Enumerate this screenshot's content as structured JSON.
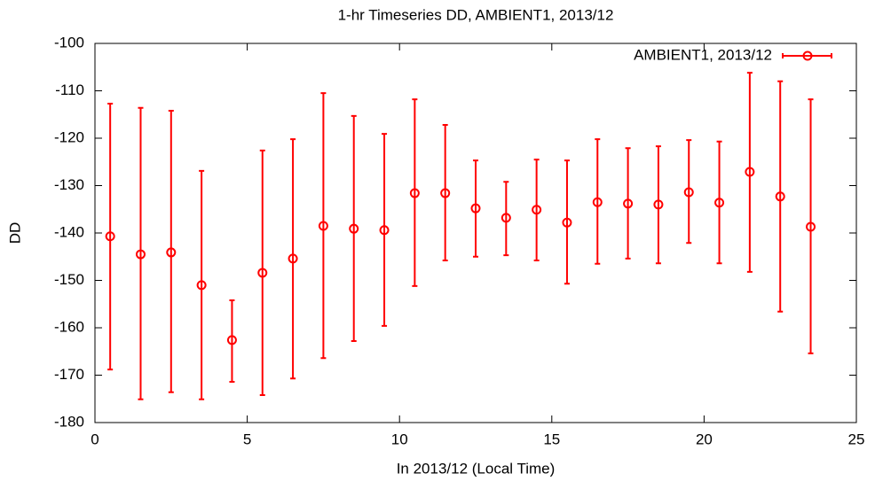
{
  "chart_data": {
    "type": "errorbar",
    "title": "1-hr Timeseries DD, AMBIENT1, 2013/12",
    "xlabel": "In 2013/12 (Local Time)",
    "ylabel": "DD",
    "xlim": [
      0,
      25
    ],
    "xticks": [
      0,
      5,
      10,
      15,
      20,
      25
    ],
    "ylim": [
      -180,
      -100
    ],
    "yticks": [
      -180,
      -170,
      -160,
      -150,
      -140,
      -130,
      -120,
      -110,
      -100
    ],
    "grid": false,
    "legend": "upper-right",
    "x": [
      0.5,
      1.5,
      2.5,
      3.5,
      4.5,
      5.5,
      6.5,
      7.5,
      8.5,
      9.5,
      10.5,
      11.5,
      12.5,
      13.5,
      14.5,
      15.5,
      16.5,
      17.5,
      18.5,
      19.5,
      20.5,
      21.5,
      22.5,
      23.5
    ],
    "series": [
      {
        "name": "AMBIENT1, 2013/12",
        "color": "#ff0000",
        "values": [
          -140.7,
          -144.5,
          -144.1,
          -151.0,
          -162.6,
          -148.4,
          -145.4,
          -138.5,
          -139.1,
          -139.4,
          -131.6,
          -131.6,
          -134.8,
          -136.8,
          -135.1,
          -137.8,
          -133.5,
          -133.8,
          -134.0,
          -131.4,
          -133.6,
          -127.1,
          -132.3,
          -138.7
        ],
        "low": [
          -168.8,
          -175.1,
          -173.6,
          -175.1,
          -171.4,
          -174.2,
          -170.7,
          -166.4,
          -162.8,
          -159.6,
          -151.2,
          -145.8,
          -145.0,
          -144.7,
          -145.8,
          -150.7,
          -146.5,
          -145.4,
          -146.4,
          -142.1,
          -146.4,
          -148.2,
          -156.6,
          -165.4
        ],
        "high": [
          -112.7,
          -113.6,
          -114.2,
          -126.9,
          -154.2,
          -122.6,
          -120.2,
          -110.5,
          -115.3,
          -119.1,
          -111.8,
          -117.2,
          -124.7,
          -129.2,
          -124.5,
          -124.7,
          -120.2,
          -122.1,
          -121.7,
          -120.4,
          -120.7,
          -106.2,
          -108.0,
          -111.8
        ]
      }
    ]
  }
}
